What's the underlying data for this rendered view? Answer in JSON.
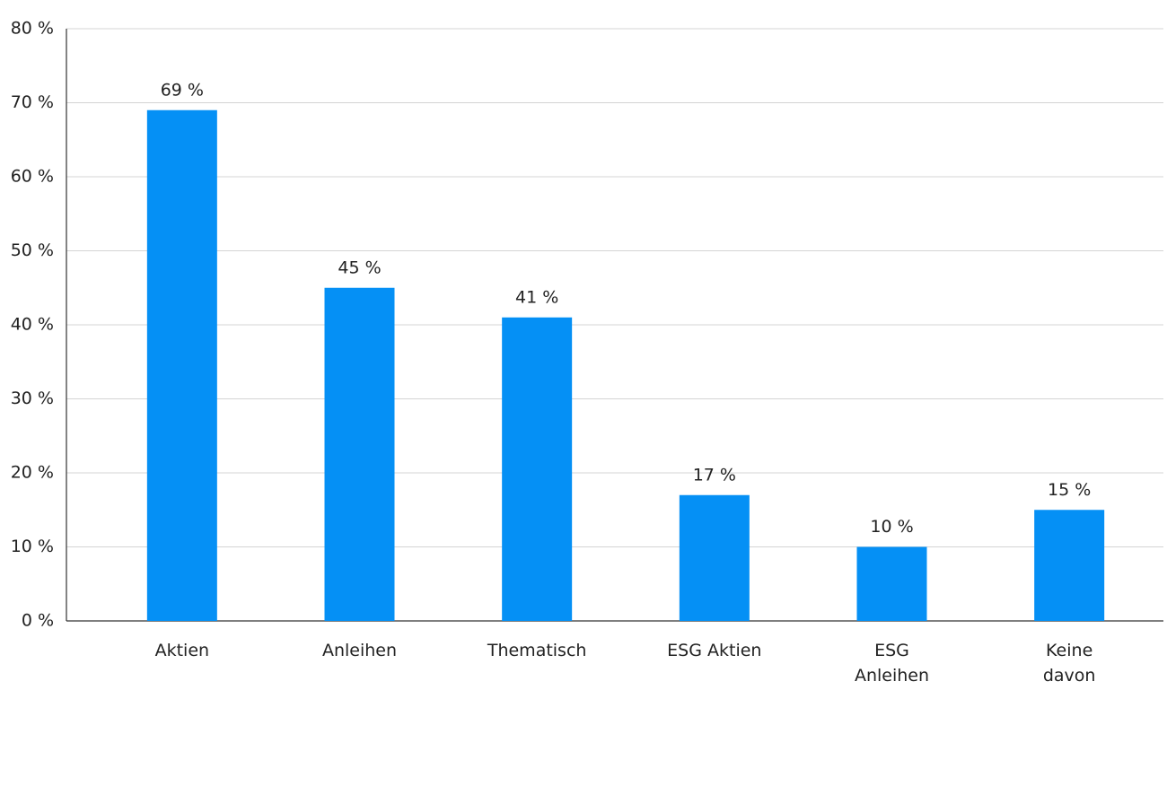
{
  "chart_data": {
    "type": "bar",
    "categories": [
      "Aktien",
      "Anleihen",
      "Thematisch",
      "ESG Aktien",
      "ESG\nAnleihen",
      "Keine\ndavon"
    ],
    "values": [
      69,
      45,
      41,
      17,
      10,
      15
    ],
    "value_labels": [
      "69 %",
      "45 %",
      "41 %",
      "17 %",
      "10 %",
      "15 %"
    ],
    "color": "#0590f5",
    "ylim": [
      0,
      80
    ],
    "yticks": [
      {
        "value": 0,
        "label": "0 %"
      },
      {
        "value": 10,
        "label": "10 %"
      },
      {
        "value": 20,
        "label": "20 %"
      },
      {
        "value": 30,
        "label": "30 %"
      },
      {
        "value": 40,
        "label": "40 %"
      },
      {
        "value": 50,
        "label": "50 %"
      },
      {
        "value": 60,
        "label": "60 %"
      },
      {
        "value": 70,
        "label": "70 %"
      },
      {
        "value": 80,
        "label": "80 %"
      }
    ],
    "grid": true
  }
}
